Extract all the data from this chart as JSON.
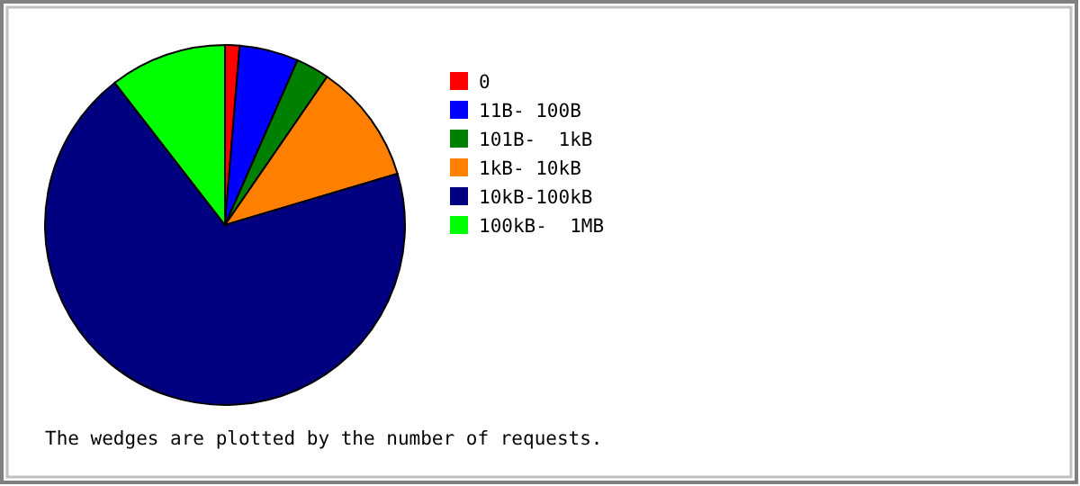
{
  "chart_data": {
    "type": "pie",
    "categories": [
      "0",
      "11B- 100B",
      "101B-  1kB",
      "1kB- 10kB",
      "10kB-100kB",
      "100kB-  1MB"
    ],
    "values": [
      1.3,
      5.3,
      3,
      10.8,
      69.1,
      10.5
    ],
    "colors": [
      "#ff0000",
      "#0000ff",
      "#008000",
      "#ff8000",
      "#000080",
      "#00ff00"
    ],
    "legend": "right",
    "annotations": [
      "The wedges are plotted by the number of requests."
    ]
  }
}
